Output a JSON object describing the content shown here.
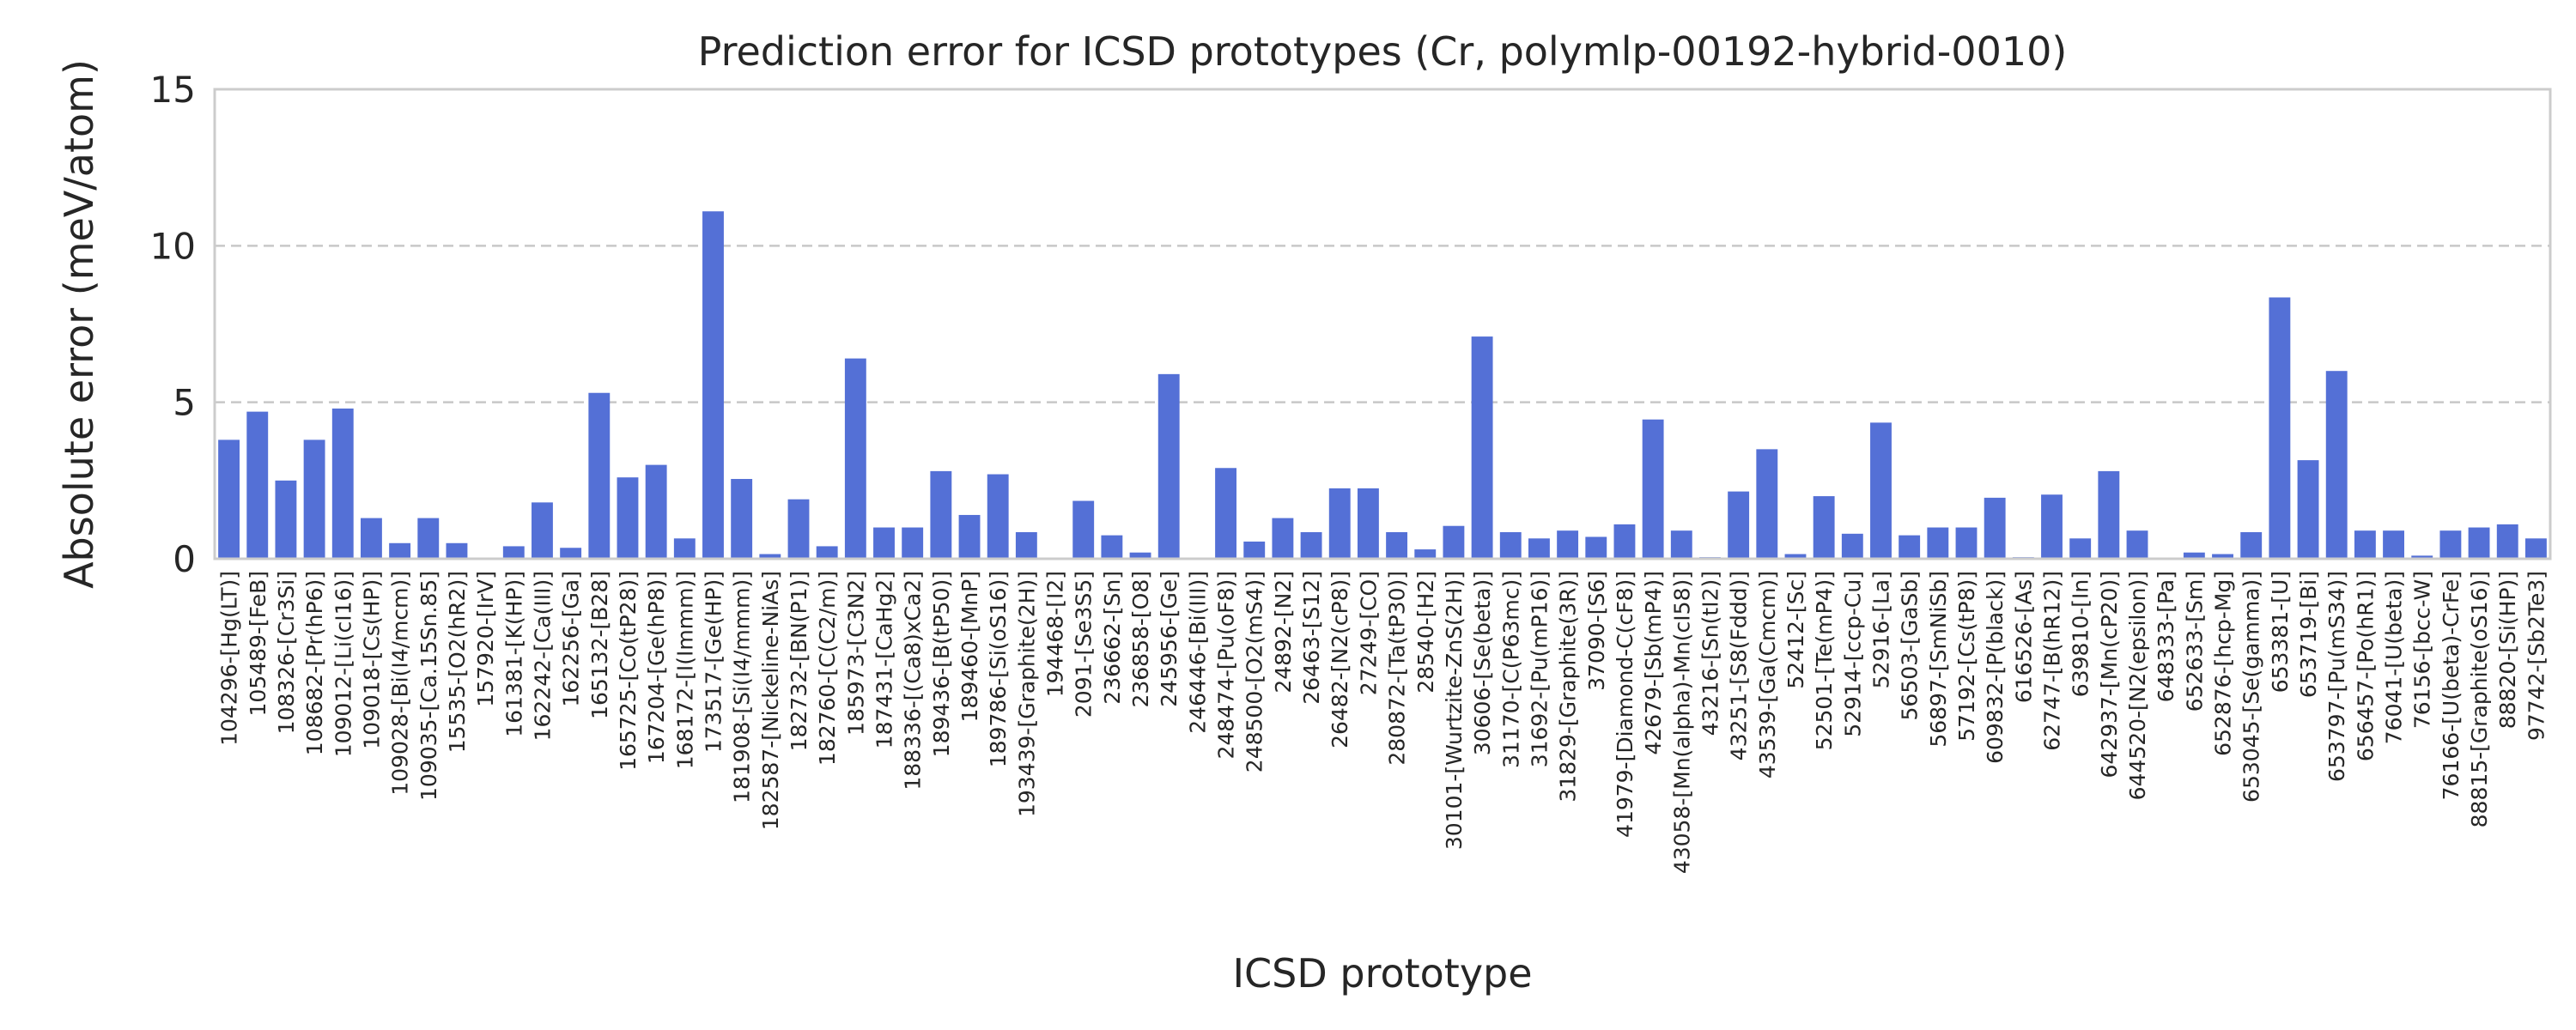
{
  "chart_data": {
    "type": "bar",
    "title": "Prediction error for ICSD prototypes (Cr, polymlp-00192-hybrid-0010)",
    "xlabel": "ICSD prototype",
    "ylabel": "Absolute error (meV/atom)",
    "ylim": [
      0,
      15
    ],
    "yticks": [
      0,
      5,
      10,
      15
    ],
    "grid": "y-dashed",
    "bar_color": "#5470d6",
    "categories": [
      "104296-[Hg(LT)]",
      "105489-[FeB]",
      "108326-[Cr3Si]",
      "108682-[Pr(hP6)]",
      "109012-[Li(cI16)]",
      "109018-[Cs(HP)]",
      "109028-[Bi(I4/mcm)]",
      "109035-[Ca.15Sn.85]",
      "15535-[O2(hR2)]",
      "157920-[IrV]",
      "161381-[K(HP)]",
      "162242-[Ca(III)]",
      "162256-[Ga]",
      "165132-[B28]",
      "165725-[Co(tP28)]",
      "167204-[Ge(hP8)]",
      "168172-[I(Immm)]",
      "173517-[Ge(HP)]",
      "181908-[Si(I4/mmm)]",
      "182587-[Nickeline-NiAs]",
      "182732-[BN(P1)]",
      "182760-[C(C2/m)]",
      "185973-[C3N2]",
      "187431-[CaHg2]",
      "188336-[(Ca8)xCa2]",
      "189436-[B(tP50)]",
      "189460-[MnP]",
      "189786-[Si(oS16)]",
      "193439-[Graphite(2H)]",
      "194468-[I2]",
      "2091-[Se3S5]",
      "236662-[Sn]",
      "236858-[O8]",
      "245956-[Ge]",
      "246446-[Bi(III)]",
      "248474-[Pu(oF8)]",
      "248500-[O2(mS4)]",
      "24892-[N2]",
      "26463-[S12]",
      "26482-[N2(cP8)]",
      "27249-[CO]",
      "280872-[Ta(tP30)]",
      "28540-[H2]",
      "30101-[Wurtzite-ZnS(2H)]",
      "30606-[Se(beta)]",
      "31170-[C(P63mc)]",
      "31692-[Pu(mP16)]",
      "31829-[Graphite(3R)]",
      "37090-[S6]",
      "41979-[Diamond-C(cF8)]",
      "42679-[Sb(mP4)]",
      "43058-[Mn(alpha)-Mn(cI58)]",
      "43216-[Sn(tI2)]",
      "43251-[S8(Fddd)]",
      "43539-[Ga(Cmcm)]",
      "52412-[Sc]",
      "52501-[Te(mP4)]",
      "52914-[ccp-Cu]",
      "52916-[La]",
      "56503-[GaSb]",
      "56897-[SmNiSb]",
      "57192-[Cs(tP8)]",
      "609832-[P(black)]",
      "616526-[As]",
      "62747-[B(hR12)]",
      "639810-[In]",
      "642937-[Mn(cP20)]",
      "644520-[N2(epsilon)]",
      "648333-[Pa]",
      "652633-[Sm]",
      "652876-[hcp-Mg]",
      "653045-[Se(gamma)]",
      "653381-[U]",
      "653719-[Bi]",
      "653797-[Pu(mS34)]",
      "656457-[Po(hR1)]",
      "76041-[U(beta)]",
      "76156-[bcc-W]",
      "76166-[U(beta)-CrFe]",
      "88815-[Graphite(oS16)]",
      "88820-[Si(HP)]",
      "97742-[Sb2Te3]"
    ],
    "values": [
      3.8,
      4.7,
      2.5,
      3.8,
      4.8,
      1.3,
      0.5,
      1.3,
      0.5,
      0.02,
      0.4,
      1.8,
      0.35,
      5.3,
      2.6,
      3.0,
      0.65,
      11.1,
      2.55,
      0.15,
      1.9,
      0.4,
      6.4,
      1.0,
      1.0,
      2.8,
      1.4,
      2.7,
      0.85,
      0.02,
      1.85,
      0.75,
      0.2,
      5.9,
      0.02,
      2.9,
      0.55,
      1.3,
      0.85,
      2.25,
      2.25,
      0.85,
      0.3,
      1.05,
      7.1,
      0.85,
      0.65,
      0.9,
      0.7,
      1.1,
      4.45,
      0.9,
      0.05,
      2.15,
      3.5,
      0.15,
      2.0,
      0.8,
      4.35,
      0.75,
      1.0,
      1.0,
      1.95,
      0.05,
      2.05,
      0.65,
      2.8,
      0.9,
      0.02,
      0.2,
      0.15,
      0.85,
      8.35,
      3.15,
      6.0,
      0.9,
      0.9,
      0.1,
      0.9,
      1.0,
      1.1,
      0.65
    ]
  }
}
